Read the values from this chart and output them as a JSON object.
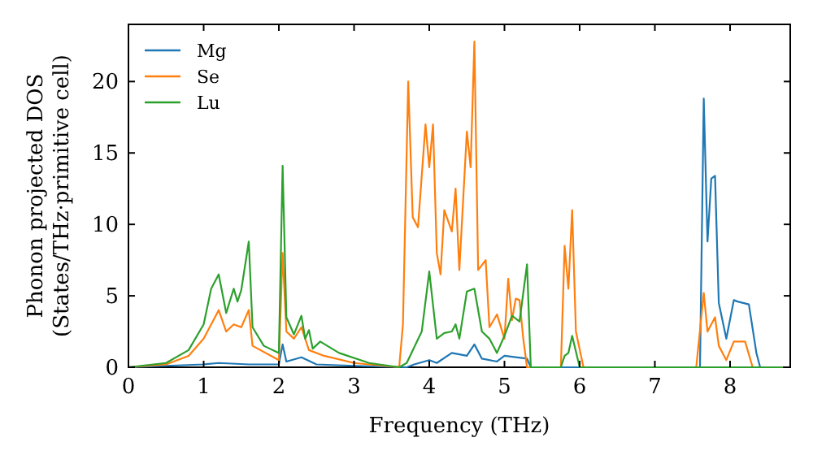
{
  "chart_data": {
    "type": "line",
    "xlabel": "Frequency (THz)",
    "ylabel": "Phonon projected DOS\n(States/THz·primitive cell)",
    "xlim": [
      0,
      8.8
    ],
    "ylim": [
      0,
      24
    ],
    "xticks": [
      0,
      1,
      2,
      3,
      4,
      5,
      6,
      7,
      8
    ],
    "yticks": [
      0,
      5,
      10,
      15,
      20
    ],
    "grid": false,
    "legend": "top left",
    "marker": "none",
    "line_style": "solid",
    "series": [
      {
        "name": "Mg",
        "color": "#1f77b4",
        "x": [
          0,
          1.0,
          1.2,
          1.6,
          2.0,
          2.05,
          2.1,
          2.3,
          2.5,
          3.0,
          3.7,
          3.8,
          4.0,
          4.1,
          4.3,
          4.5,
          4.6,
          4.7,
          4.9,
          5.0,
          5.3,
          5.35,
          7.6,
          7.65,
          7.7,
          7.75,
          7.8,
          7.85,
          7.95,
          8.05,
          8.1,
          8.25,
          8.35,
          8.4,
          8.7
        ],
        "values": [
          0,
          0.2,
          0.3,
          0.2,
          0.2,
          1.6,
          0.4,
          0.7,
          0.2,
          0.1,
          0,
          0.2,
          0.5,
          0.3,
          1.0,
          0.8,
          1.6,
          0.6,
          0.4,
          0.8,
          0.6,
          0,
          0,
          18.8,
          8.8,
          13.2,
          13.4,
          4.5,
          2.0,
          4.7,
          4.6,
          4.4,
          1.0,
          0,
          0
        ]
      },
      {
        "name": "Se",
        "color": "#ff7f0e",
        "x": [
          0,
          0.5,
          0.8,
          1.0,
          1.1,
          1.2,
          1.3,
          1.4,
          1.5,
          1.6,
          1.65,
          2.0,
          2.05,
          2.1,
          2.2,
          2.3,
          2.4,
          2.6,
          3.0,
          3.6,
          3.65,
          3.72,
          3.78,
          3.85,
          3.95,
          4.0,
          4.05,
          4.1,
          4.15,
          4.2,
          4.3,
          4.35,
          4.4,
          4.5,
          4.55,
          4.6,
          4.65,
          4.75,
          4.8,
          4.9,
          5.0,
          5.05,
          5.1,
          5.15,
          5.2,
          5.25,
          5.3,
          5.75,
          5.8,
          5.85,
          5.9,
          5.95,
          6.05,
          7.55,
          7.65,
          7.7,
          7.8,
          7.85,
          7.95,
          8.05,
          8.2,
          8.3,
          8.7
        ],
        "values": [
          0,
          0.2,
          0.8,
          2.0,
          3.0,
          4.0,
          2.5,
          3.0,
          2.8,
          4.0,
          1.5,
          0.5,
          8.0,
          2.5,
          2.0,
          2.8,
          1.2,
          0.8,
          0.3,
          0,
          3,
          20,
          10.5,
          9.8,
          17,
          14,
          17,
          8,
          6.5,
          11,
          9.5,
          12.5,
          6.8,
          16.5,
          14,
          22.8,
          6.8,
          7.5,
          2.8,
          3.7,
          2.0,
          6.2,
          3.3,
          4.8,
          4.7,
          2.0,
          0,
          0,
          8.5,
          5.5,
          11.0,
          2.5,
          0,
          0,
          5.2,
          2.5,
          3.5,
          1.5,
          0.5,
          1.8,
          1.8,
          0,
          0
        ]
      },
      {
        "name": "Lu",
        "color": "#2ca02c",
        "x": [
          0,
          0.5,
          0.8,
          1.0,
          1.1,
          1.2,
          1.3,
          1.4,
          1.45,
          1.5,
          1.6,
          1.65,
          1.8,
          2.0,
          2.05,
          2.1,
          2.2,
          2.3,
          2.35,
          2.4,
          2.45,
          2.55,
          2.8,
          3.2,
          3.6,
          3.7,
          3.9,
          4.0,
          4.1,
          4.2,
          4.3,
          4.35,
          4.4,
          4.5,
          4.6,
          4.7,
          4.8,
          4.9,
          5.0,
          5.1,
          5.2,
          5.3,
          5.35,
          5.75,
          5.8,
          5.85,
          5.9,
          6.0,
          8.7
        ],
        "values": [
          0,
          0.3,
          1.2,
          3.0,
          5.5,
          6.5,
          3.8,
          5.5,
          4.6,
          5.4,
          8.8,
          2.8,
          1.5,
          1.0,
          14.1,
          3.5,
          2.3,
          3.6,
          2.0,
          2.6,
          1.3,
          1.8,
          1.0,
          0.3,
          0,
          0.3,
          2.5,
          6.7,
          2.0,
          2.4,
          2.5,
          3.0,
          2.0,
          5.3,
          5.5,
          2.5,
          2.0,
          1.0,
          2.2,
          3.6,
          3.2,
          7.2,
          0,
          0,
          0.8,
          1.0,
          2.2,
          0,
          0
        ]
      }
    ]
  }
}
